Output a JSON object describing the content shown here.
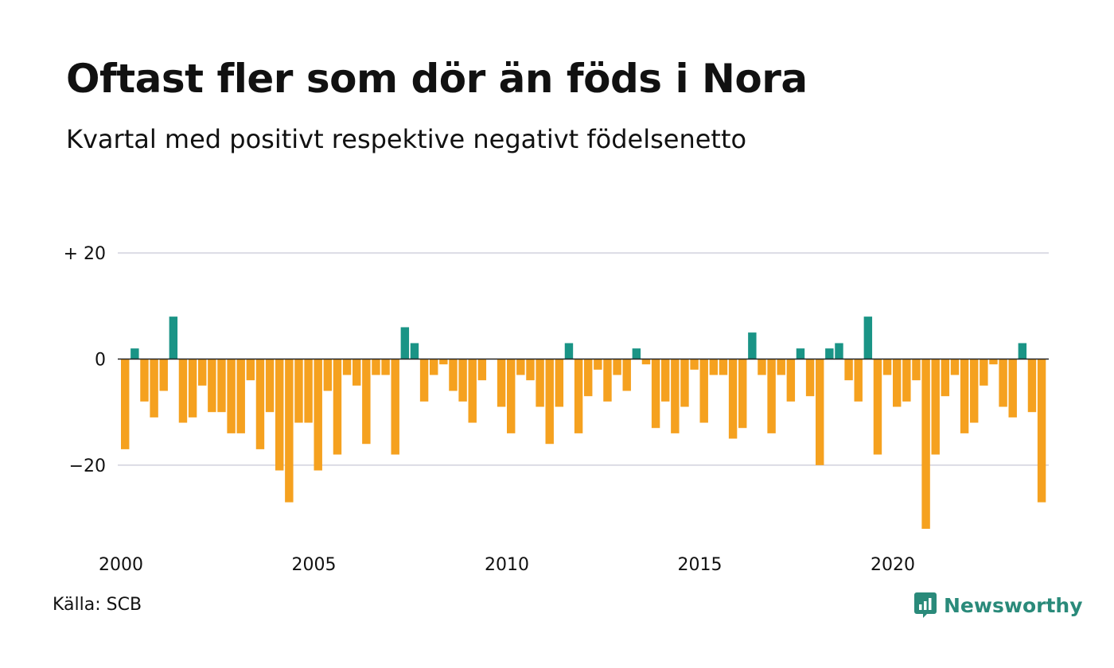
{
  "header": {
    "title": "Oftast fler som dör än föds i Nora",
    "subtitle": "Kvartal med positivt respektive negativt födelsenetto"
  },
  "footer": {
    "source": "Källa: SCB",
    "brand": "Newsworthy",
    "brand_icon": "newsworthy-logo-icon"
  },
  "colors": {
    "positive": "#1a9486",
    "negative": "#f5a11f",
    "gridline": "#dcdce4",
    "zeroline": "#222222",
    "text": "#111111"
  },
  "chart_data": {
    "type": "bar",
    "title": "Oftast fler som dör än föds i Nora",
    "subtitle": "Kvartal med positivt respektive negativt födelsenetto",
    "xlabel": "",
    "ylabel": "",
    "x_start": 2000,
    "x_end": 2024,
    "periods_per_year": 4,
    "ylim": [
      -32,
      20
    ],
    "yticks": [
      {
        "value": 20,
        "label": "+ 20"
      },
      {
        "value": 0,
        "label": "0"
      },
      {
        "value": -20,
        "label": "−20"
      }
    ],
    "xticks": [
      {
        "value": 2000,
        "label": "2000"
      },
      {
        "value": 2005,
        "label": "2005"
      },
      {
        "value": 2010,
        "label": "2010"
      },
      {
        "value": 2015,
        "label": "2015"
      },
      {
        "value": 2020,
        "label": "2020"
      }
    ],
    "grid": true,
    "values": [
      -17,
      2,
      -8,
      -11,
      -6,
      8,
      -12,
      -11,
      -5,
      -10,
      -10,
      -14,
      -14,
      -4,
      -17,
      -10,
      -21,
      -27,
      -12,
      -12,
      -21,
      -6,
      -18,
      -3,
      -5,
      -16,
      -3,
      -3,
      -18,
      6,
      3,
      -8,
      -3,
      -1,
      -6,
      -8,
      -12,
      -4,
      0,
      -9,
      -14,
      -3,
      -4,
      -9,
      -16,
      -9,
      3,
      -14,
      -7,
      -2,
      -8,
      -3,
      -6,
      2,
      -1,
      -13,
      -8,
      -14,
      -9,
      -2,
      -12,
      -3,
      -3,
      -15,
      -13,
      5,
      -3,
      -14,
      -3,
      -8,
      2,
      -7,
      -20,
      2,
      3,
      -4,
      -8,
      8,
      -18,
      -3,
      -9,
      -8,
      -4,
      -32,
      -18,
      -7,
      -3,
      -14,
      -12,
      -5,
      -1,
      -9,
      -11,
      3,
      -10,
      -27
    ]
  }
}
